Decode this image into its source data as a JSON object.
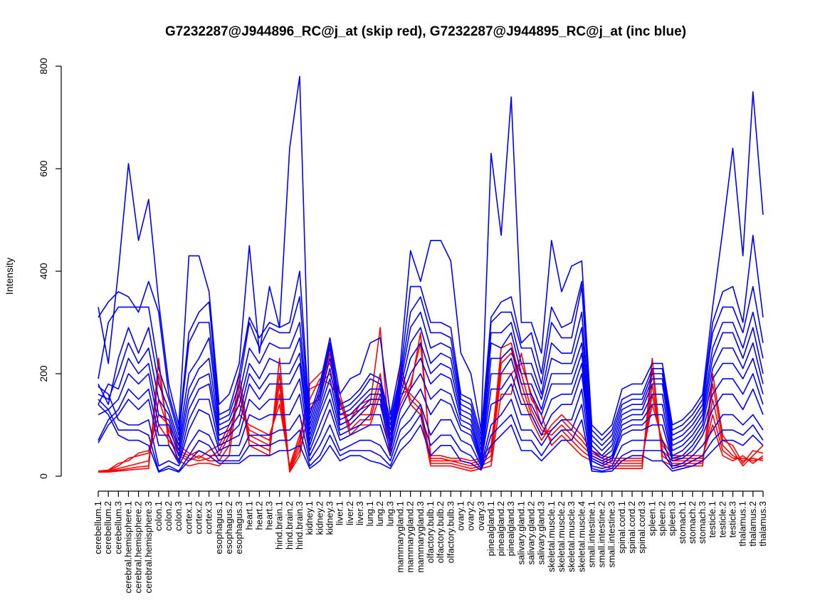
{
  "chart_data": {
    "type": "line",
    "title": "G7232287@J944896_RC@j_at (skip red), G7232287@J944895_RC@j_at (inc blue)",
    "ylabel": "Intensity",
    "xlabel": "",
    "ylim": [
      0,
      800
    ],
    "yticks": [
      0,
      200,
      400,
      600,
      800
    ],
    "categories": [
      "cerebellum.1",
      "cerebellum.2",
      "cerebellum.3",
      "cerebral.hemisphere.1",
      "cerebral.hemisphere.2",
      "cerebral.hemisphere.3",
      "colon.1",
      "colon.2",
      "colon.3",
      "cortex.1",
      "cortex.2",
      "cortex.3",
      "esophagus.1",
      "esophagus.2",
      "esophagus.3",
      "heart.1",
      "heart.2",
      "heart.3",
      "hind.brain.1",
      "hind.brain.2",
      "hind.brain.3",
      "kidney.1",
      "kidney.2",
      "kidney.3",
      "liver.1",
      "liver.2",
      "liver.3",
      "lung.1",
      "lung.2",
      "lung.3",
      "mammarygland.1",
      "mammarygland.2",
      "mammarygland.3",
      "olfactory.bulb.1",
      "olfactory.bulb.2",
      "olfactory.bulb.3",
      "ovary.1",
      "ovary.2",
      "ovary.3",
      "pinealgland.1",
      "pinealgland.2",
      "pinealgland.3",
      "salivary.gland.1",
      "salivary.gland.2",
      "salivary.gland.3",
      "skeletal.muscle.1",
      "skeletal.muscle.2",
      "skeletal.muscle.3",
      "skeletal.muscle.4",
      "small.intestine.1",
      "small.intestine.2",
      "small.intestine.3",
      "spinal.cord.1",
      "spinal.cord.2",
      "spinal.cord.3",
      "spleen.1",
      "spleen.2",
      "spleen.3",
      "stomach.1",
      "stomach.2",
      "stomach.3",
      "testicle.1",
      "testicle.2",
      "testicle.3",
      "thalamus.1",
      "thalamus.2",
      "thalamus.3"
    ],
    "colors": {
      "skip": "#ff0000",
      "inc": "#0000ff"
    },
    "series": [
      {
        "group": "skip",
        "values": [
          8,
          8,
          10,
          12,
          14,
          15,
          230,
          60,
          30,
          20,
          25,
          25,
          20,
          40,
          180,
          60,
          50,
          40,
          230,
          8,
          40,
          140,
          150,
          260,
          100,
          110,
          140,
          150,
          150,
          40,
          220,
          140,
          120,
          20,
          20,
          20,
          15,
          10,
          15,
          20,
          160,
          160,
          240,
          150,
          120,
          60,
          80,
          60,
          40,
          30,
          20,
          15,
          15,
          15,
          15,
          230,
          30,
          20,
          20,
          20,
          20,
          200,
          80,
          50,
          20,
          40,
          60
        ]
      },
      {
        "group": "skip",
        "values": [
          10,
          10,
          12,
          15,
          18,
          20,
          200,
          80,
          40,
          30,
          40,
          30,
          30,
          60,
          200,
          70,
          60,
          50,
          200,
          10,
          50,
          130,
          160,
          240,
          120,
          120,
          130,
          140,
          290,
          50,
          200,
          150,
          130,
          25,
          25,
          25,
          20,
          15,
          20,
          30,
          200,
          200,
          220,
          160,
          100,
          70,
          90,
          70,
          50,
          35,
          25,
          20,
          20,
          20,
          20,
          210,
          40,
          25,
          25,
          25,
          25,
          180,
          70,
          60,
          25,
          50,
          45
        ]
      },
      {
        "group": "skip",
        "values": [
          8,
          10,
          15,
          20,
          25,
          30,
          150,
          90,
          50,
          40,
          50,
          40,
          40,
          80,
          160,
          80,
          70,
          60,
          180,
          12,
          60,
          170,
          180,
          200,
          140,
          100,
          120,
          120,
          200,
          60,
          180,
          160,
          140,
          30,
          30,
          30,
          25,
          20,
          25,
          40,
          220,
          240,
          200,
          130,
          90,
          80,
          100,
          80,
          60,
          40,
          30,
          25,
          25,
          25,
          25,
          180,
          50,
          30,
          30,
          30,
          30,
          150,
          60,
          40,
          30,
          35,
          30
        ]
      },
      {
        "group": "skip",
        "values": [
          10,
          12,
          25,
          30,
          45,
          50,
          120,
          100,
          60,
          45,
          35,
          50,
          60,
          100,
          140,
          90,
          80,
          70,
          160,
          15,
          70,
          180,
          200,
          220,
          160,
          90,
          110,
          110,
          180,
          70,
          160,
          170,
          280,
          35,
          35,
          30,
          30,
          25,
          30,
          50,
          250,
          260,
          180,
          120,
          80,
          90,
          110,
          90,
          70,
          45,
          35,
          30,
          30,
          30,
          30,
          160,
          60,
          35,
          35,
          35,
          35,
          120,
          50,
          35,
          35,
          30,
          35
        ]
      },
      {
        "group": "skip",
        "values": [
          9,
          11,
          20,
          35,
          40,
          45,
          100,
          70,
          45,
          35,
          30,
          35,
          50,
          90,
          120,
          100,
          90,
          80,
          140,
          20,
          80,
          150,
          190,
          180,
          150,
          80,
          100,
          100,
          160,
          80,
          140,
          180,
          260,
          40,
          40,
          35,
          35,
          30,
          35,
          60,
          230,
          250,
          160,
          110,
          70,
          100,
          120,
          100,
          80,
          50,
          40,
          35,
          35,
          35,
          35,
          140,
          70,
          40,
          40,
          40,
          40,
          100,
          40,
          30,
          40,
          25,
          40
        ]
      },
      {
        "group": "inc",
        "values": [
          330,
          220,
          400,
          610,
          460,
          540,
          340,
          180,
          100,
          430,
          430,
          360,
          140,
          160,
          220,
          450,
          240,
          370,
          290,
          640,
          780,
          120,
          180,
          270,
          160,
          190,
          200,
          260,
          270,
          120,
          220,
          440,
          380,
          460,
          460,
          420,
          240,
          200,
          90,
          630,
          470,
          740,
          300,
          300,
          240,
          460,
          360,
          410,
          420,
          100,
          80,
          100,
          170,
          180,
          180,
          220,
          220,
          100,
          110,
          130,
          160,
          330,
          480,
          640,
          430,
          750,
          510
        ]
      },
      {
        "group": "inc",
        "values": [
          310,
          340,
          360,
          350,
          320,
          380,
          320,
          160,
          90,
          280,
          320,
          340,
          120,
          130,
          200,
          310,
          270,
          300,
          290,
          300,
          400,
          110,
          170,
          260,
          140,
          150,
          170,
          200,
          190,
          110,
          200,
          370,
          370,
          300,
          300,
          290,
          160,
          150,
          80,
          310,
          340,
          350,
          260,
          280,
          200,
          330,
          290,
          300,
          380,
          90,
          70,
          90,
          150,
          160,
          160,
          210,
          210,
          90,
          100,
          120,
          150,
          300,
          360,
          370,
          300,
          470,
          310
        ]
      },
      {
        "group": "inc",
        "values": [
          190,
          300,
          330,
          330,
          330,
          330,
          210,
          150,
          80,
          260,
          300,
          300,
          110,
          120,
          180,
          300,
          250,
          290,
          280,
          280,
          350,
          100,
          160,
          250,
          130,
          140,
          160,
          190,
          180,
          100,
          190,
          320,
          350,
          280,
          280,
          270,
          150,
          140,
          70,
          300,
          320,
          320,
          250,
          250,
          180,
          300,
          270,
          270,
          370,
          80,
          60,
          80,
          140,
          150,
          150,
          200,
          200,
          80,
          90,
          110,
          140,
          280,
          330,
          330,
          280,
          370,
          260
        ]
      },
      {
        "group": "inc",
        "values": [
          180,
          140,
          230,
          290,
          240,
          290,
          180,
          130,
          70,
          200,
          230,
          270,
          100,
          110,
          160,
          250,
          220,
          260,
          250,
          250,
          300,
          90,
          150,
          230,
          120,
          130,
          150,
          170,
          170,
          90,
          180,
          290,
          320,
          250,
          260,
          250,
          140,
          130,
          60,
          280,
          280,
          300,
          220,
          220,
          160,
          260,
          240,
          240,
          320,
          70,
          50,
          70,
          130,
          140,
          140,
          190,
          190,
          70,
          80,
          100,
          130,
          250,
          300,
          300,
          250,
          320,
          230
        ]
      },
      {
        "group": "inc",
        "values": [
          160,
          150,
          200,
          260,
          220,
          250,
          150,
          120,
          60,
          170,
          210,
          230,
          90,
          100,
          140,
          220,
          190,
          230,
          220,
          220,
          270,
          80,
          140,
          210,
          110,
          120,
          140,
          160,
          160,
          80,
          170,
          260,
          290,
          220,
          240,
          230,
          130,
          120,
          50,
          260,
          250,
          280,
          200,
          200,
          150,
          230,
          220,
          220,
          290,
          60,
          40,
          60,
          120,
          130,
          130,
          180,
          180,
          60,
          70,
          90,
          120,
          230,
          280,
          280,
          230,
          290,
          200
        ]
      },
      {
        "group": "inc",
        "values": [
          140,
          180,
          170,
          230,
          200,
          220,
          120,
          110,
          50,
          150,
          190,
          200,
          80,
          90,
          120,
          200,
          170,
          200,
          200,
          200,
          240,
          70,
          130,
          190,
          100,
          110,
          130,
          150,
          150,
          70,
          160,
          230,
          260,
          200,
          220,
          210,
          120,
          110,
          40,
          230,
          230,
          250,
          180,
          180,
          130,
          200,
          200,
          200,
          260,
          50,
          35,
          50,
          110,
          120,
          120,
          160,
          160,
          50,
          60,
          80,
          110,
          210,
          250,
          250,
          210,
          260,
          180
        ]
      },
      {
        "group": "inc",
        "values": [
          120,
          130,
          150,
          200,
          180,
          200,
          100,
          100,
          40,
          130,
          170,
          180,
          70,
          80,
          100,
          180,
          150,
          180,
          180,
          180,
          220,
          60,
          120,
          170,
          90,
          100,
          120,
          140,
          140,
          60,
          150,
          200,
          230,
          180,
          200,
          190,
          110,
          100,
          35,
          200,
          200,
          230,
          160,
          160,
          120,
          180,
          180,
          180,
          240,
          40,
          30,
          40,
          100,
          110,
          110,
          140,
          140,
          40,
          50,
          70,
          100,
          190,
          220,
          220,
          190,
          230,
          160
        ]
      },
      {
        "group": "inc",
        "values": [
          70,
          110,
          130,
          170,
          150,
          170,
          80,
          80,
          30,
          110,
          150,
          150,
          60,
          70,
          80,
          150,
          130,
          150,
          150,
          150,
          190,
          50,
          100,
          150,
          80,
          90,
          100,
          120,
          120,
          50,
          130,
          170,
          200,
          150,
          170,
          160,
          100,
          90,
          30,
          170,
          170,
          200,
          140,
          140,
          100,
          150,
          160,
          160,
          220,
          35,
          25,
          35,
          90,
          100,
          100,
          120,
          120,
          35,
          40,
          60,
          90,
          160,
          190,
          190,
          160,
          200,
          140
        ]
      },
      {
        "group": "inc",
        "values": [
          65,
          100,
          120,
          150,
          130,
          150,
          60,
          60,
          25,
          90,
          130,
          120,
          50,
          60,
          60,
          120,
          110,
          120,
          120,
          120,
          160,
          40,
          80,
          130,
          70,
          80,
          90,
          100,
          100,
          40,
          110,
          140,
          170,
          120,
          150,
          140,
          90,
          80,
          25,
          140,
          150,
          180,
          120,
          120,
          80,
          120,
          140,
          140,
          200,
          30,
          20,
          30,
          80,
          90,
          90,
          100,
          100,
          30,
          35,
          50,
          80,
          130,
          160,
          160,
          130,
          170,
          120
        ]
      },
      {
        "group": "inc",
        "values": [
          175,
          160,
          110,
          100,
          100,
          110,
          20,
          30,
          20,
          60,
          90,
          80,
          40,
          40,
          40,
          80,
          80,
          80,
          90,
          90,
          120,
          30,
          60,
          100,
          50,
          60,
          70,
          70,
          60,
          30,
          90,
          110,
          140,
          80,
          110,
          110,
          70,
          60,
          20,
          100,
          120,
          150,
          90,
          90,
          60,
          90,
          110,
          110,
          170,
          20,
          15,
          20,
          60,
          70,
          70,
          70,
          70,
          20,
          25,
          40,
          60,
          90,
          120,
          120,
          100,
          120,
          90
        ]
      },
      {
        "group": "inc",
        "values": [
          150,
          130,
          90,
          90,
          90,
          80,
          10,
          20,
          10,
          40,
          70,
          60,
          30,
          30,
          30,
          60,
          60,
          60,
          70,
          70,
          90,
          20,
          40,
          80,
          40,
          50,
          50,
          50,
          40,
          20,
          70,
          90,
          120,
          60,
          80,
          80,
          50,
          40,
          15,
          80,
          100,
          120,
          70,
          70,
          40,
          70,
          90,
          90,
          140,
          15,
          10,
          15,
          40,
          50,
          50,
          50,
          50,
          15,
          20,
          30,
          40,
          70,
          90,
          90,
          80,
          100,
          70
        ]
      },
      {
        "group": "inc",
        "values": [
          140,
          120,
          80,
          70,
          70,
          60,
          8,
          15,
          8,
          30,
          50,
          40,
          25,
          25,
          25,
          40,
          40,
          40,
          50,
          50,
          60,
          15,
          30,
          60,
          30,
          40,
          40,
          30,
          25,
          15,
          50,
          70,
          100,
          40,
          60,
          60,
          30,
          25,
          12,
          60,
          80,
          100,
          50,
          50,
          30,
          50,
          70,
          70,
          110,
          10,
          8,
          10,
          30,
          40,
          40,
          30,
          30,
          10,
          15,
          20,
          30,
          50,
          70,
          70,
          60,
          80,
          60
        ]
      }
    ]
  }
}
